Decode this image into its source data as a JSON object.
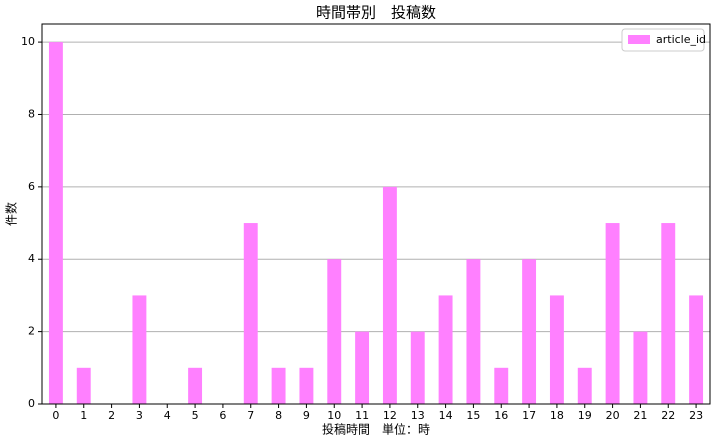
{
  "chart_data": {
    "type": "bar",
    "title": "時間帯別　投稿数",
    "x_label": "投稿時間　単位：時",
    "y_label": "件数",
    "categories": [
      "0",
      "1",
      "2",
      "3",
      "4",
      "5",
      "6",
      "7",
      "8",
      "9",
      "10",
      "11",
      "12",
      "13",
      "14",
      "15",
      "16",
      "17",
      "18",
      "19",
      "20",
      "21",
      "22",
      "23"
    ],
    "series": [
      {
        "name": "article_id",
        "color": "#ff80ff",
        "values": [
          10,
          1,
          0,
          3,
          0,
          1,
          0,
          5,
          1,
          1,
          4,
          2,
          6,
          2,
          3,
          4,
          1,
          4,
          3,
          1,
          5,
          2,
          5,
          3
        ]
      }
    ],
    "ylim": [
      0,
      10.5
    ],
    "yticks": [
      0,
      2,
      4,
      6,
      8,
      10
    ],
    "grid": true,
    "legend": "upper right"
  }
}
